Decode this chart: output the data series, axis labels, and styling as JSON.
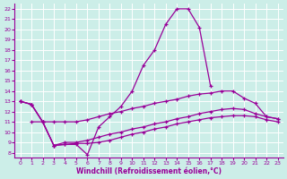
{
  "xlabel": "Windchill (Refroidissement éolien,°C)",
  "background_color": "#cceee8",
  "grid_color": "#aaddcc",
  "line_color": "#990099",
  "x_ticks": [
    0,
    1,
    2,
    3,
    4,
    5,
    6,
    7,
    8,
    9,
    10,
    11,
    12,
    13,
    14,
    15,
    16,
    17,
    18,
    19,
    20,
    21,
    22,
    23
  ],
  "y_ticks": [
    8,
    9,
    10,
    11,
    12,
    13,
    14,
    15,
    16,
    17,
    18,
    19,
    20,
    21,
    22
  ],
  "ylim": [
    7.5,
    22.5
  ],
  "xlim": [
    -0.5,
    23.5
  ],
  "lines": [
    {
      "x": [
        0,
        1,
        2,
        3,
        4,
        5,
        6,
        7,
        8,
        9,
        10,
        11,
        12,
        13,
        14,
        15,
        16,
        17
      ],
      "y": [
        13,
        12.7,
        11.0,
        8.7,
        8.8,
        8.8,
        7.8,
        10.5,
        11.5,
        12.5,
        14.0,
        16.5,
        18.0,
        20.5,
        22.0,
        22.0,
        20.2,
        14.5
      ]
    },
    {
      "x": [
        0,
        1,
        2,
        3,
        4,
        5,
        6,
        7,
        8,
        9,
        10,
        11,
        12,
        13,
        14,
        15,
        16,
        17,
        18,
        19,
        20,
        21,
        22,
        23
      ],
      "y": [
        13.0,
        12.7,
        11.0,
        11.0,
        11.0,
        11.0,
        11.2,
        11.5,
        11.8,
        12.0,
        12.3,
        12.5,
        12.8,
        13.0,
        13.2,
        13.5,
        13.7,
        13.8,
        14.0,
        14.0,
        13.3,
        12.8,
        11.5,
        11.3
      ]
    },
    {
      "x": [
        0,
        1,
        2,
        3,
        4,
        5,
        6,
        7,
        8,
        9,
        10,
        11,
        12,
        13,
        14,
        15,
        16,
        17,
        18,
        19,
        20,
        21,
        22,
        23
      ],
      "y": [
        13.0,
        12.7,
        11.0,
        8.7,
        9.0,
        9.0,
        9.2,
        9.5,
        9.8,
        10.0,
        10.3,
        10.5,
        10.8,
        11.0,
        11.3,
        11.5,
        11.8,
        12.0,
        12.2,
        12.3,
        12.2,
        11.8,
        11.5,
        11.3
      ]
    },
    {
      "x": [
        1,
        2,
        3,
        4,
        5,
        6,
        7,
        8,
        9,
        10,
        11,
        12,
        13,
        14,
        15,
        16,
        17,
        18,
        19,
        20,
        21,
        22,
        23
      ],
      "y": [
        11.0,
        11.0,
        8.7,
        8.8,
        8.9,
        8.9,
        9.0,
        9.2,
        9.5,
        9.8,
        10.0,
        10.3,
        10.5,
        10.8,
        11.0,
        11.2,
        11.4,
        11.5,
        11.6,
        11.6,
        11.5,
        11.2,
        11.0
      ]
    }
  ]
}
